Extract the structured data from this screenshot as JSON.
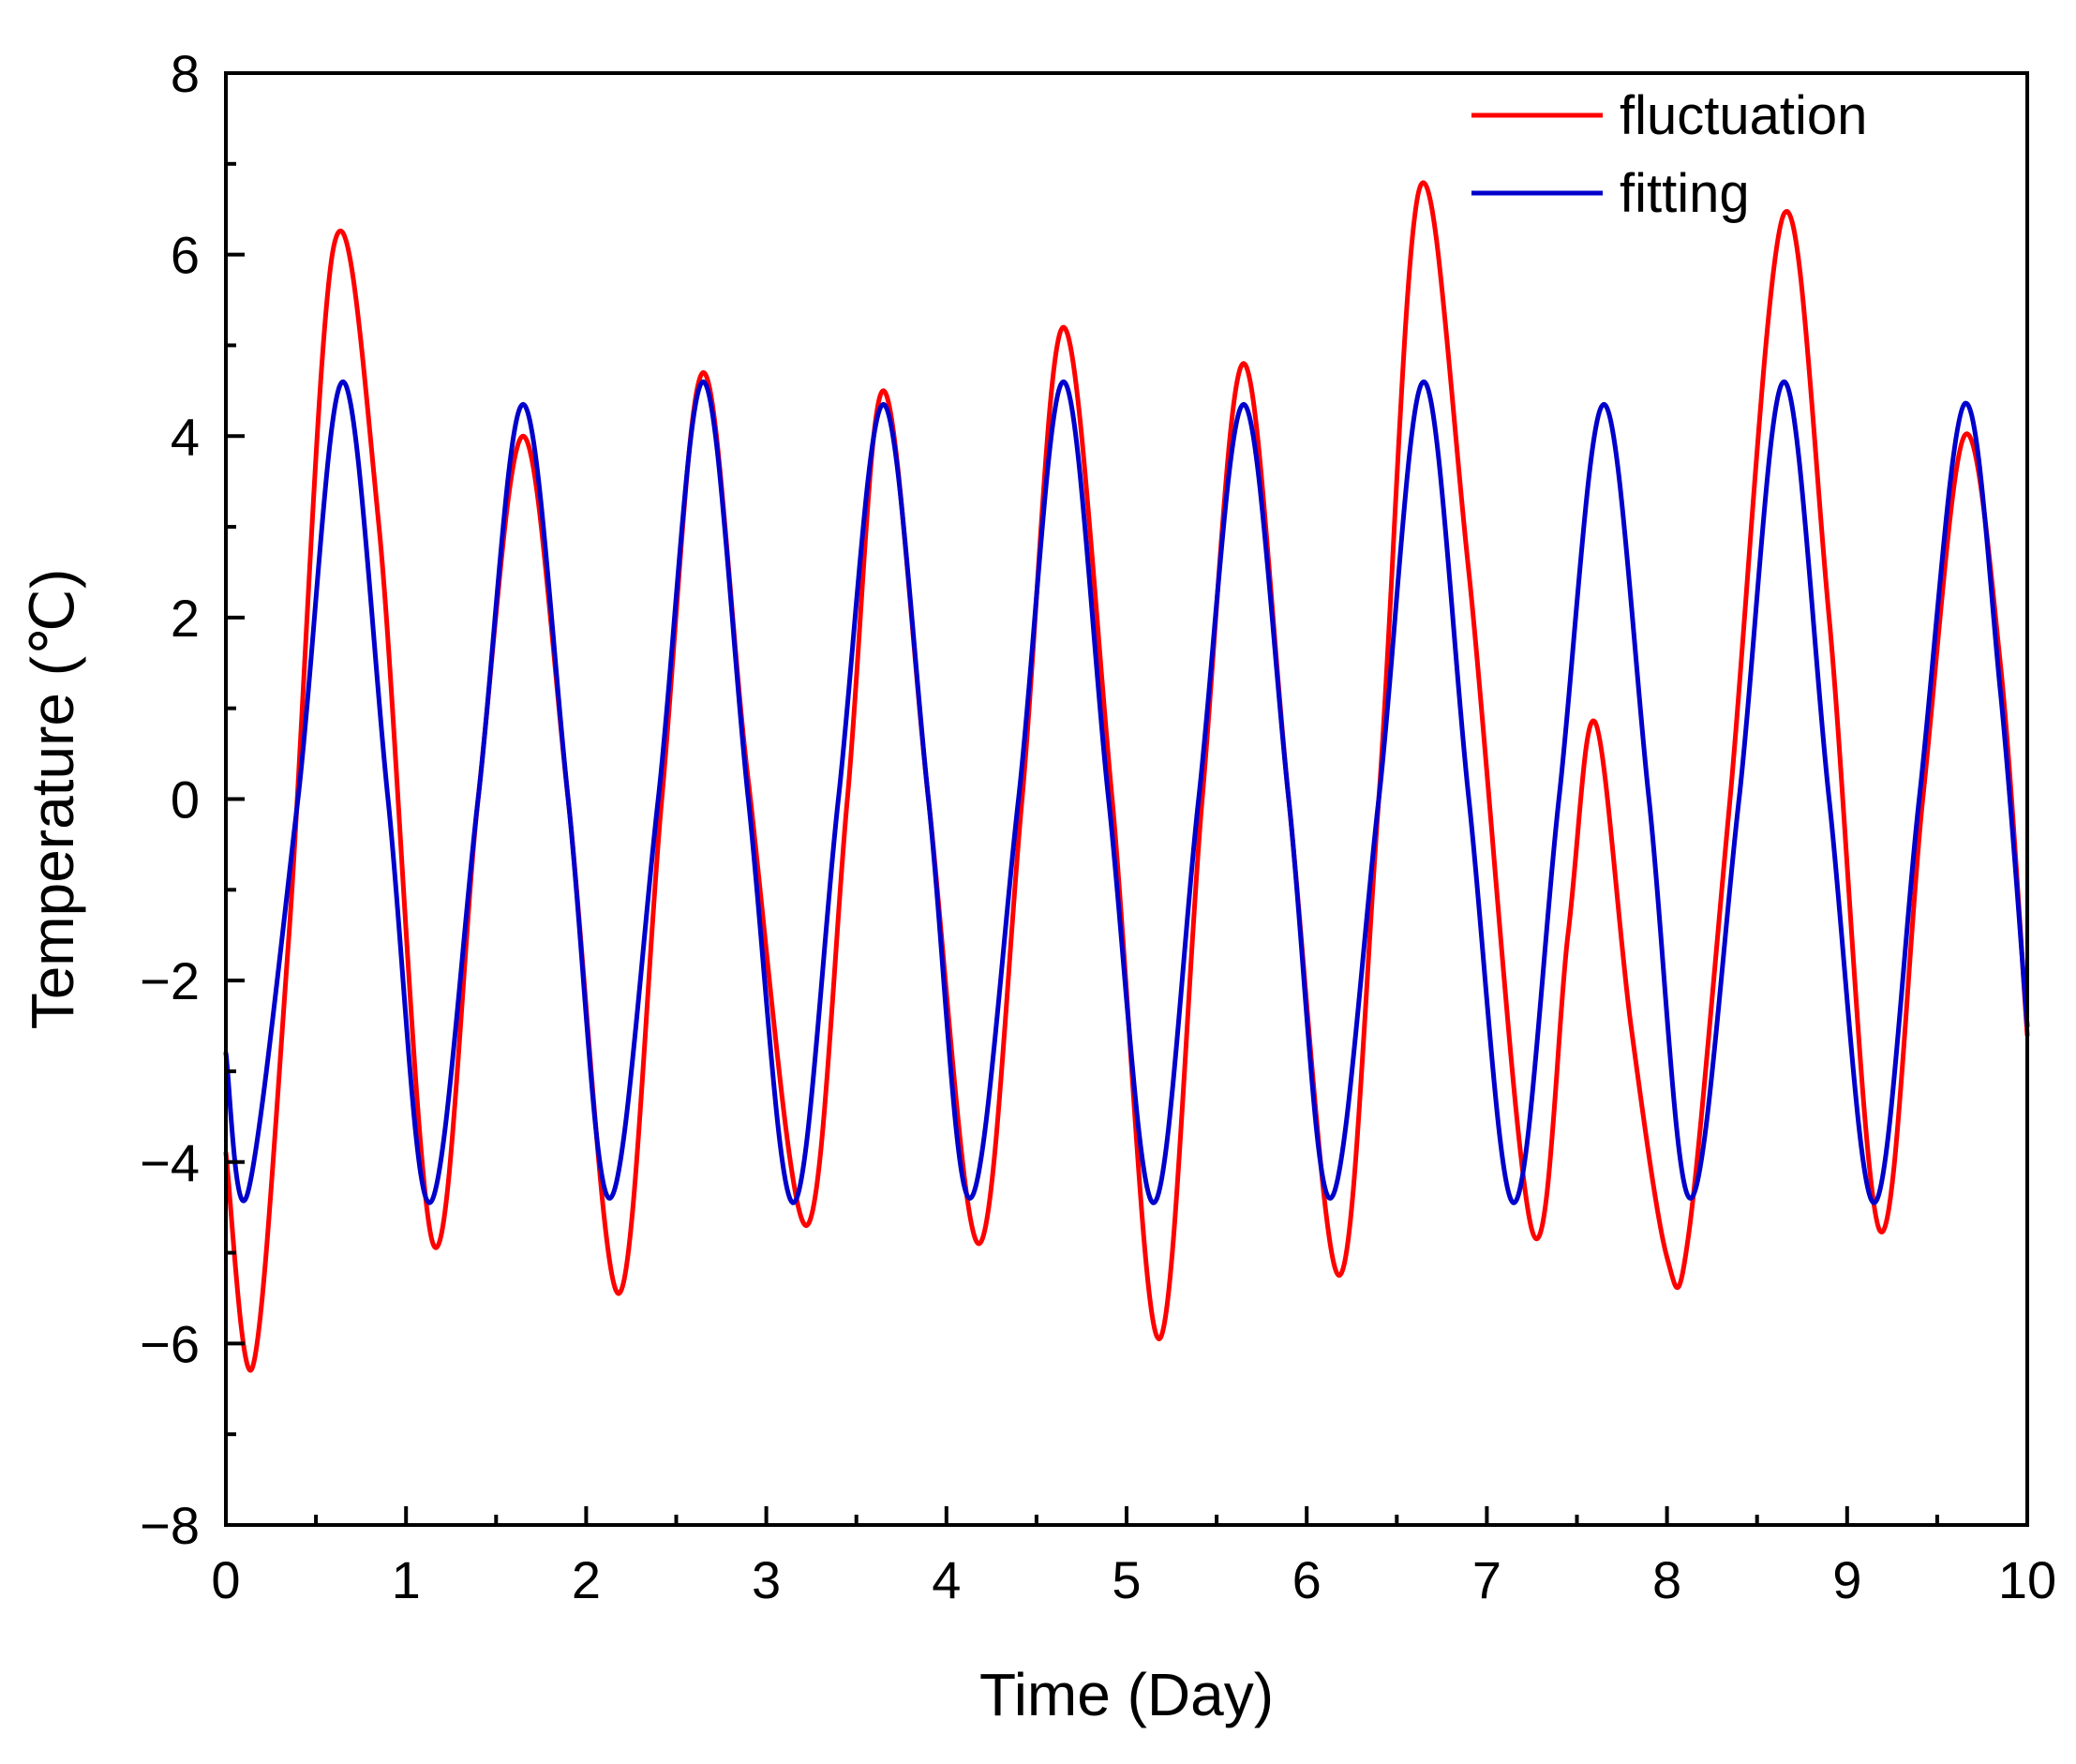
{
  "chart_data": {
    "type": "line",
    "title": "",
    "xlabel": "Time (Day)",
    "ylabel": "Temperature (℃)",
    "xlim": [
      0,
      10
    ],
    "ylim": [
      -8,
      8
    ],
    "xticks": [
      0,
      1,
      2,
      3,
      4,
      5,
      6,
      7,
      8,
      9,
      10
    ],
    "yticks": [
      -8,
      -6,
      -4,
      -2,
      0,
      2,
      4,
      6,
      8
    ],
    "xtick_labels": [
      "0",
      "1",
      "2",
      "3",
      "4",
      "5",
      "6",
      "7",
      "8",
      "9",
      "10"
    ],
    "ytick_labels": [
      "−8",
      "−6",
      "−4",
      "−2",
      "0",
      "2",
      "4",
      "6",
      "8"
    ],
    "grid": false,
    "legend_position": "top-right",
    "series": [
      {
        "name": "fluctuation",
        "color": "#ff0000",
        "points": [
          [
            0.0,
            -3.9
          ],
          [
            0.15,
            -6.25
          ],
          [
            0.35,
            -1.5
          ],
          [
            0.6,
            6.1
          ],
          [
            0.85,
            3.0
          ],
          [
            1.15,
            -4.9
          ],
          [
            1.4,
            0.0
          ],
          [
            1.65,
            4.0
          ],
          [
            1.9,
            0.0
          ],
          [
            2.18,
            -5.45
          ],
          [
            2.42,
            0.0
          ],
          [
            2.65,
            4.7
          ],
          [
            2.9,
            0.2
          ],
          [
            3.22,
            -4.7
          ],
          [
            3.45,
            0.0
          ],
          [
            3.65,
            4.5
          ],
          [
            3.9,
            0.0
          ],
          [
            4.18,
            -4.9
          ],
          [
            4.42,
            0.0
          ],
          [
            4.65,
            5.2
          ],
          [
            4.92,
            0.0
          ],
          [
            5.18,
            -5.95
          ],
          [
            5.42,
            0.0
          ],
          [
            5.65,
            4.8
          ],
          [
            5.9,
            0.0
          ],
          [
            6.18,
            -5.25
          ],
          [
            6.4,
            0.0
          ],
          [
            6.63,
            6.75
          ],
          [
            6.9,
            2.5
          ],
          [
            7.25,
            -4.75
          ],
          [
            7.45,
            -1.5
          ],
          [
            7.6,
            0.85
          ],
          [
            7.8,
            -2.5
          ],
          [
            8.0,
            -5.05
          ],
          [
            8.12,
            -4.8
          ],
          [
            8.35,
            0.0
          ],
          [
            8.65,
            6.45
          ],
          [
            8.9,
            2.0
          ],
          [
            9.18,
            -4.75
          ],
          [
            9.42,
            0.0
          ],
          [
            9.65,
            4.0
          ],
          [
            9.85,
            1.5
          ],
          [
            10.0,
            -2.6
          ]
        ]
      },
      {
        "name": "fitting",
        "color": "#0000cc",
        "points": [
          [
            0.0,
            -2.8
          ],
          [
            0.12,
            -4.35
          ],
          [
            0.4,
            0.0
          ],
          [
            0.65,
            4.6
          ],
          [
            0.9,
            0.0
          ],
          [
            1.13,
            -4.45
          ],
          [
            1.4,
            0.0
          ],
          [
            1.65,
            4.35
          ],
          [
            1.9,
            0.0
          ],
          [
            2.13,
            -4.4
          ],
          [
            2.4,
            0.0
          ],
          [
            2.65,
            4.6
          ],
          [
            2.9,
            0.0
          ],
          [
            3.15,
            -4.45
          ],
          [
            3.4,
            0.0
          ],
          [
            3.65,
            4.35
          ],
          [
            3.9,
            0.0
          ],
          [
            4.13,
            -4.4
          ],
          [
            4.4,
            0.0
          ],
          [
            4.65,
            4.6
          ],
          [
            4.9,
            0.0
          ],
          [
            5.15,
            -4.45
          ],
          [
            5.4,
            0.0
          ],
          [
            5.65,
            4.35
          ],
          [
            5.9,
            0.0
          ],
          [
            6.13,
            -4.4
          ],
          [
            6.4,
            0.0
          ],
          [
            6.65,
            4.6
          ],
          [
            6.9,
            0.0
          ],
          [
            7.15,
            -4.45
          ],
          [
            7.4,
            0.0
          ],
          [
            7.65,
            4.35
          ],
          [
            7.9,
            0.0
          ],
          [
            8.13,
            -4.4
          ],
          [
            8.4,
            0.0
          ],
          [
            8.65,
            4.6
          ],
          [
            8.9,
            0.0
          ],
          [
            9.15,
            -4.45
          ],
          [
            9.4,
            0.0
          ],
          [
            9.65,
            4.35
          ],
          [
            9.85,
            1.2
          ],
          [
            10.0,
            -2.5
          ]
        ]
      }
    ]
  }
}
